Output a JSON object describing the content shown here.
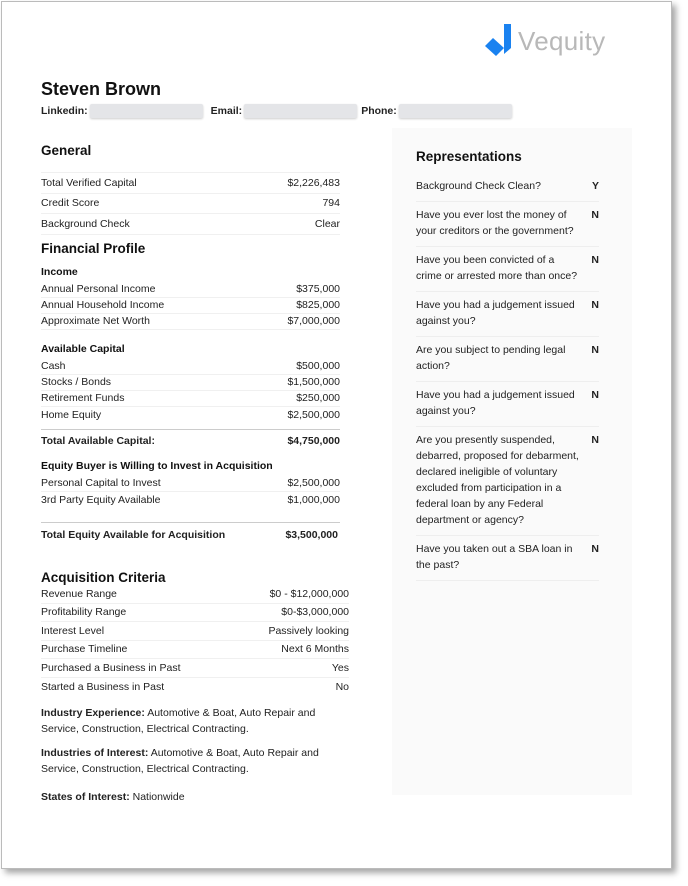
{
  "brand": {
    "name": "Vequity",
    "color": "#1a82f0"
  },
  "profile": {
    "name": "Steven Brown",
    "linkedin_label": "Linkedin:",
    "email_label": "Email:",
    "phone_label": "Phone:"
  },
  "general": {
    "title": "General",
    "rows": [
      {
        "label": "Total Verified Capital",
        "value": "$2,226,483"
      },
      {
        "label": "Credit Score",
        "value": "794"
      },
      {
        "label": "Background Check",
        "value": "Clear"
      }
    ]
  },
  "financial": {
    "title": "Financial Profile",
    "income": {
      "title": "Income",
      "rows": [
        {
          "label": "Annual Personal Income",
          "value": "$375,000"
        },
        {
          "label": "Annual Household Income",
          "value": "$825,000"
        },
        {
          "label": "Approximate Net Worth",
          "value": "$7,000,000"
        }
      ]
    },
    "available": {
      "title": "Available Capital",
      "rows": [
        {
          "label": "Cash",
          "value": "$500,000"
        },
        {
          "label": "Stocks / Bonds",
          "value": "$1,500,000"
        },
        {
          "label": "Retirement Funds",
          "value": "$250,000"
        },
        {
          "label": "Home Equity",
          "value": "$2,500,000"
        }
      ],
      "total_label": "Total Available Capital:",
      "total_value": "$4,750,000"
    },
    "equity": {
      "title": "Equity Buyer is Willing to Invest in Acquisition",
      "rows": [
        {
          "label": "Personal Capital to Invest",
          "value": "$2,500,000"
        },
        {
          "label": "3rd Party Equity Available",
          "value": "$1,000,000"
        }
      ],
      "total_label": "Total Equity Available for Acquisition",
      "total_value": "$3,500,000"
    }
  },
  "acquisition": {
    "title": "Acquisition Criteria",
    "rows": [
      {
        "label": "Revenue Range",
        "value": "$0 - $12,000,000"
      },
      {
        "label": "Profitability Range",
        "value": "$0-$3,000,000"
      },
      {
        "label": "Interest Level",
        "value": "Passively looking"
      },
      {
        "label": "Purchase Timeline",
        "value": "Next 6 Months"
      },
      {
        "label": "Purchased a Business in Past",
        "value": "Yes"
      },
      {
        "label": "Started a Business in Past",
        "value": "No"
      }
    ],
    "industry_experience_label": "Industry Experience:",
    "industry_experience": "Automotive & Boat, Auto Repair and Service, Construction, Electrical Contracting.",
    "industries_interest_label": "Industries of Interest:",
    "industries_interest": "Automotive & Boat, Auto Repair and Service, Construction, Electrical Contracting.",
    "states_label": "States of Interest:",
    "states": "Nationwide"
  },
  "representations": {
    "title": "Representations",
    "items": [
      {
        "q": "Background Check Clean?",
        "a": "Y"
      },
      {
        "q": "Have you ever lost the money of your creditors or the government?",
        "a": "N"
      },
      {
        "q": "Have you been convicted of a crime or arrested more than once?",
        "a": "N"
      },
      {
        "q": "Have you had a judgement issued against you?",
        "a": "N"
      },
      {
        "q": "Are you subject to pending legal action?",
        "a": "N"
      },
      {
        "q": "Have you had a judgement issued against you?",
        "a": "N"
      },
      {
        "q": "Are you presently suspended, debarred, proposed for debarment, declared ineligible of voluntary excluded from participation in a federal loan by any Federal department or agency?",
        "a": "N"
      },
      {
        "q": "Have you taken out a SBA loan in the past?",
        "a": "N"
      }
    ]
  }
}
